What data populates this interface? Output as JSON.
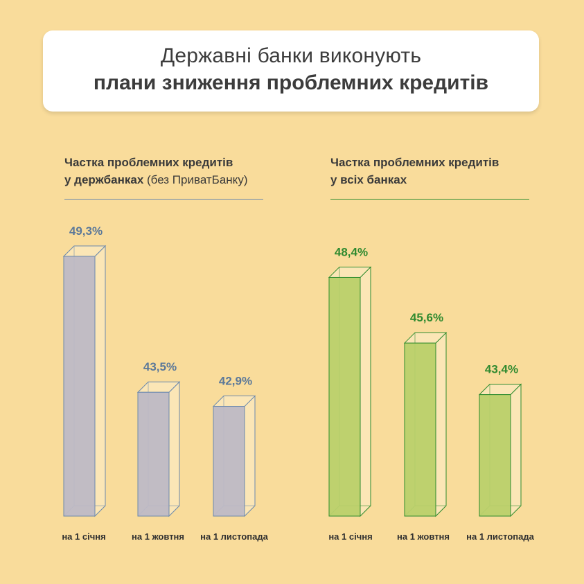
{
  "header": {
    "title_line1": "Державні банки виконують",
    "title_line2": "плани зниження проблемних кредитів"
  },
  "colors": {
    "background": "#f9dc9b",
    "state_front": "#bcb8c8",
    "state_stroke": "#6a88ad",
    "state_label": "#5b7899",
    "state_rule": "#6a88ad",
    "all_front": "#b9cf6a",
    "all_stroke": "#2e8b2e",
    "all_label": "#2f8a2f",
    "all_rule": "#2e8b2e",
    "prism_side": "#fbe6b6"
  },
  "chart_data": [
    {
      "type": "bar",
      "title_strong_1": "Частка проблемних кредитів",
      "title_strong_2": "у держбанках",
      "title_light_2": " (без ПриватБанку)",
      "categories": [
        "на 1 січня",
        "на 1 жовтня",
        "на 1 листопада"
      ],
      "values": [
        49.3,
        43.5,
        42.9
      ],
      "value_labels": [
        "49,3%",
        "43,5%",
        "42,9%"
      ],
      "unit": "%"
    },
    {
      "type": "bar",
      "title_strong_1": "Частка проблемних кредитів",
      "title_strong_2": "у всіх банках",
      "title_light_2": "",
      "categories": [
        "на 1 січня",
        "на 1 жовтня",
        "на 1 листопада"
      ],
      "values": [
        48.4,
        45.6,
        43.4
      ],
      "value_labels": [
        "48,4%",
        "45,6%",
        "43,4%"
      ],
      "unit": "%"
    }
  ]
}
